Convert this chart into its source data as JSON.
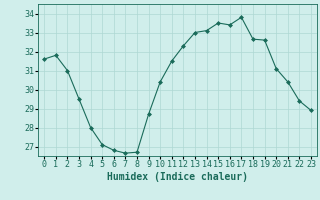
{
  "x": [
    0,
    1,
    2,
    3,
    4,
    5,
    6,
    7,
    8,
    9,
    10,
    11,
    12,
    13,
    14,
    15,
    16,
    17,
    18,
    19,
    20,
    21,
    22,
    23
  ],
  "y": [
    31.6,
    31.8,
    31.0,
    29.5,
    28.0,
    27.1,
    26.8,
    26.65,
    26.7,
    28.7,
    30.4,
    31.5,
    32.3,
    33.0,
    33.1,
    33.5,
    33.4,
    33.8,
    32.65,
    32.6,
    31.1,
    30.4,
    29.4,
    28.9
  ],
  "line_color": "#1a6b5a",
  "marker": "D",
  "marker_size": 2.0,
  "bg_color": "#d0eeeb",
  "grid_color": "#aed8d4",
  "xlabel": "Humidex (Indice chaleur)",
  "xlabel_fontsize": 7,
  "tick_fontsize": 6,
  "ylim": [
    26.5,
    34.5
  ],
  "yticks": [
    27,
    28,
    29,
    30,
    31,
    32,
    33,
    34
  ],
  "xlim": [
    -0.5,
    23.5
  ],
  "xticks": [
    0,
    1,
    2,
    3,
    4,
    5,
    6,
    7,
    8,
    9,
    10,
    11,
    12,
    13,
    14,
    15,
    16,
    17,
    18,
    19,
    20,
    21,
    22,
    23
  ]
}
